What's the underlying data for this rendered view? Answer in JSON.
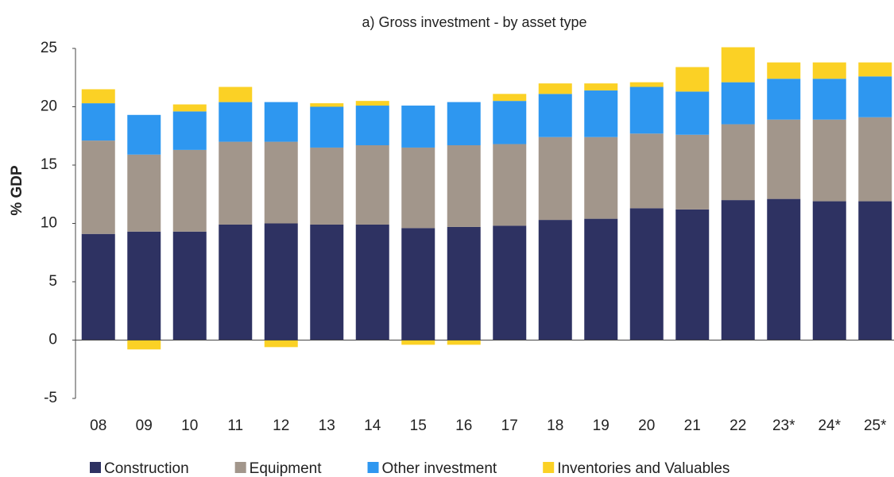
{
  "chart_data": {
    "type": "stacked_bar",
    "title": "a) Gross investment - by asset type",
    "y_label": "% GDP",
    "categories": [
      "08",
      "09",
      "10",
      "11",
      "12",
      "13",
      "14",
      "15",
      "16",
      "17",
      "18",
      "19",
      "20",
      "21",
      "22",
      "23*",
      "24*",
      "25*"
    ],
    "series": [
      {
        "name": "Construction",
        "color": "#2e3262",
        "values": [
          9.1,
          9.3,
          9.3,
          9.9,
          10.0,
          9.9,
          9.9,
          9.6,
          9.7,
          9.8,
          10.3,
          10.4,
          11.3,
          11.2,
          12.0,
          12.1,
          11.9,
          11.9
        ]
      },
      {
        "name": "Equipment",
        "color": "#a2968b",
        "values": [
          8.0,
          6.6,
          7.0,
          7.1,
          7.0,
          6.6,
          6.8,
          6.9,
          7.0,
          7.0,
          7.1,
          7.0,
          6.4,
          6.4,
          6.5,
          6.8,
          7.0,
          7.2
        ]
      },
      {
        "name": "Other investment",
        "color": "#2e97f0",
        "values": [
          3.2,
          3.4,
          3.3,
          3.4,
          3.4,
          3.5,
          3.4,
          3.6,
          3.7,
          3.7,
          3.7,
          4.0,
          4.0,
          3.7,
          3.6,
          3.5,
          3.5,
          3.5
        ]
      },
      {
        "name": "Inventories and Valuables",
        "color": "#fbd125",
        "values": [
          1.2,
          -0.8,
          0.6,
          1.3,
          -0.6,
          0.3,
          0.4,
          -0.4,
          -0.4,
          0.6,
          0.9,
          0.6,
          0.4,
          2.1,
          3.0,
          1.4,
          1.4,
          1.2
        ]
      }
    ],
    "ylim": [
      -5,
      25
    ],
    "yticks": [
      -5,
      0,
      5,
      10,
      15,
      20,
      25
    ],
    "grid": false,
    "legend": "bottom"
  }
}
